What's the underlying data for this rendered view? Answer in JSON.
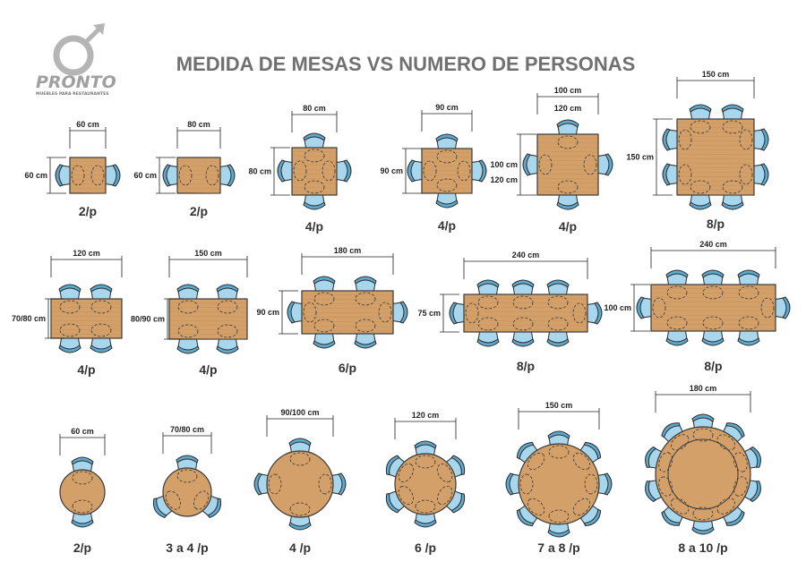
{
  "header": {
    "title": "MEDIDA DE MESAS VS NUMERO DE PERSONAS",
    "brand": "PRONTO",
    "brand_subtitle": "MUEBLES PARA RESTAURANTES"
  },
  "colors": {
    "table": "#d4a06a",
    "seat": "#a8d6ec",
    "seat_back": "#5fa9cf",
    "title": "#707070"
  },
  "tables": [
    {
      "id": "r1-a",
      "shape": "rect",
      "width": "60 cm",
      "depth": "60 cm",
      "seats": "2/p"
    },
    {
      "id": "r1-b",
      "shape": "rect",
      "width": "80 cm",
      "depth": "60 cm",
      "seats": "2/p"
    },
    {
      "id": "r1-c",
      "shape": "rect",
      "width": "80 cm",
      "depth": "80 cm",
      "seats": "4/p"
    },
    {
      "id": "r1-d",
      "shape": "rect",
      "width": "90 cm",
      "depth": "90 cm",
      "seats": "4/p"
    },
    {
      "id": "r1-e",
      "shape": "rect",
      "width": "100 cm",
      "width_alt": "120 cm",
      "depth": "100 cm",
      "depth_alt": "120 cm",
      "seats": "4/p"
    },
    {
      "id": "r1-f",
      "shape": "rect",
      "width": "150 cm",
      "depth": "150 cm",
      "seats": "8/p"
    },
    {
      "id": "r2-a",
      "shape": "rect",
      "width": "120 cm",
      "depth": "70/80 cm",
      "seats": "4/p"
    },
    {
      "id": "r2-b",
      "shape": "rect",
      "width": "150 cm",
      "depth": "80/90 cm",
      "seats": "4/p"
    },
    {
      "id": "r2-c",
      "shape": "rect",
      "width": "180 cm",
      "depth": "90 cm",
      "seats": "6/p"
    },
    {
      "id": "r2-d",
      "shape": "rect",
      "width": "240 cm",
      "depth": "75 cm",
      "seats": "8/p"
    },
    {
      "id": "r2-e",
      "shape": "rect",
      "width": "240 cm",
      "depth": "100 cm",
      "seats": "8/p"
    },
    {
      "id": "r3-a",
      "shape": "round",
      "diameter": "60 cm",
      "seats": "2/p"
    },
    {
      "id": "r3-b",
      "shape": "round",
      "diameter": "70/80 cm",
      "seats": "3 a 4 /p"
    },
    {
      "id": "r3-c",
      "shape": "round",
      "diameter": "90/100 cm",
      "seats": "4 /p"
    },
    {
      "id": "r3-d",
      "shape": "round",
      "diameter": "120 cm",
      "seats": "6 /p"
    },
    {
      "id": "r3-e",
      "shape": "round",
      "diameter": "150 cm",
      "seats": "7 a 8 /p"
    },
    {
      "id": "r3-f",
      "shape": "round",
      "diameter": "180 cm",
      "seats": "8 a 10 /p"
    }
  ]
}
